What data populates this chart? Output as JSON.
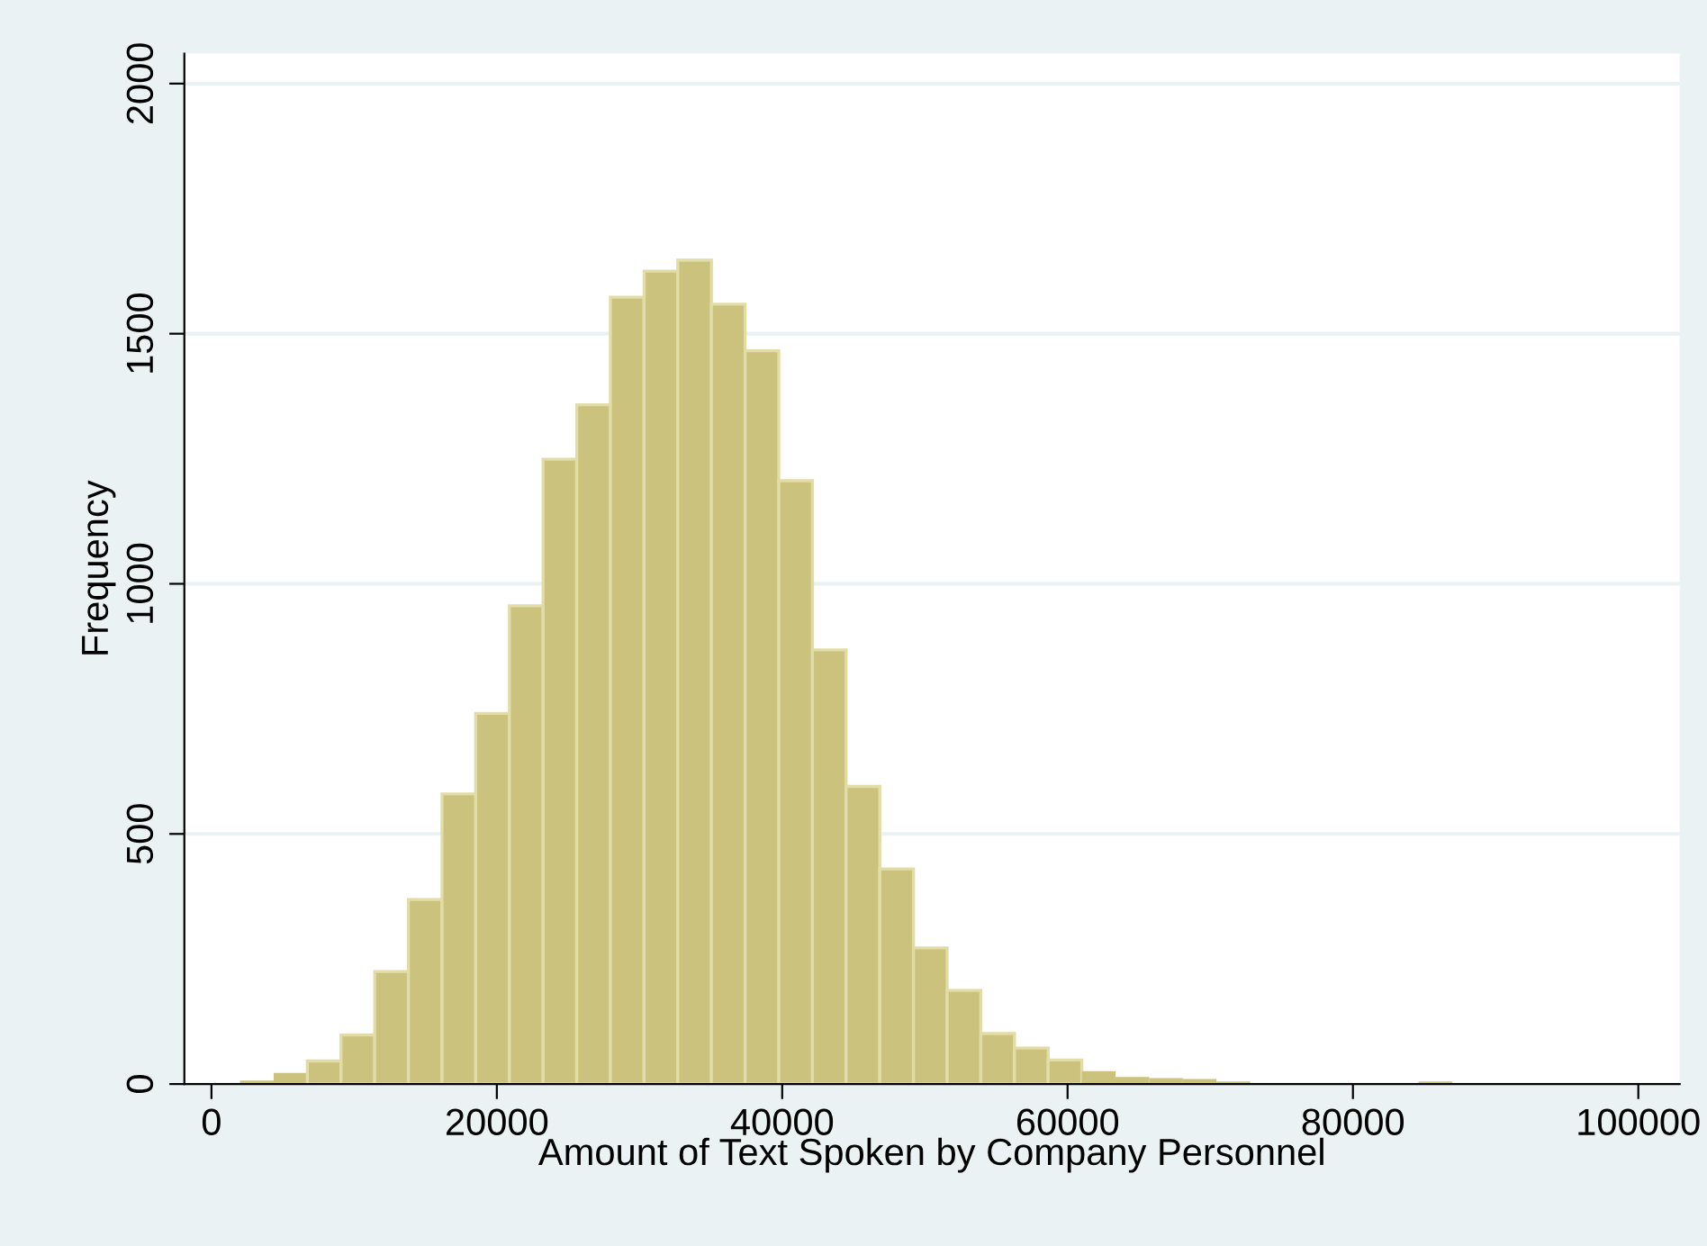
{
  "chart_data": {
    "type": "histogram",
    "xlabel": "Amount of Text Spoken by Company Personnel",
    "ylabel": "Frequency",
    "bins": [
      2000,
      4360,
      6720,
      9080,
      11440,
      13800,
      16160,
      18520,
      20880,
      23240,
      25600,
      27960,
      30320,
      32680,
      35040,
      37400,
      39760,
      42120,
      44480,
      46840,
      49200,
      51560,
      53920,
      56280,
      58640,
      61000,
      63360,
      65720,
      68080,
      70440,
      72800,
      75160,
      77520,
      79880,
      82240,
      84600,
      86960,
      89320,
      91680,
      94040,
      96400,
      98760,
      101120
    ],
    "values": [
      7,
      22,
      46,
      98,
      225,
      369,
      580,
      741,
      956,
      1249,
      1358,
      1573,
      1625,
      1647,
      1559,
      1466,
      1206,
      868,
      595,
      430,
      272,
      187,
      101,
      72,
      48,
      26,
      14,
      12,
      10,
      5,
      2,
      1,
      1,
      0,
      2,
      5,
      1,
      1,
      0,
      0,
      1,
      1
    ],
    "color": "#cbc37d",
    "xlim": [
      -1900,
      102900
    ],
    "ylim": [
      0,
      2060
    ],
    "xticks": [
      0,
      20000,
      40000,
      60000,
      80000,
      100000
    ],
    "yticks": [
      0,
      500,
      1000,
      1500,
      2000
    ],
    "grid": "y"
  }
}
